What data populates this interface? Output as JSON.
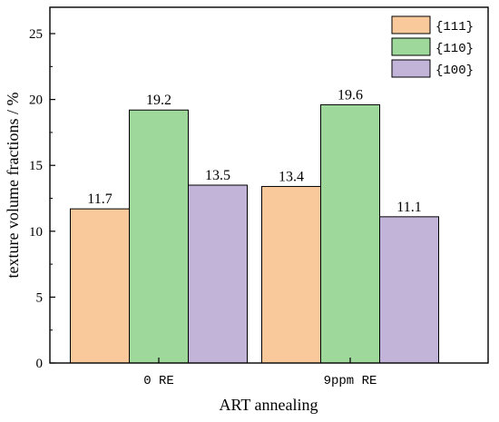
{
  "chart_data": {
    "type": "bar",
    "categories": [
      "0 RE",
      "9ppm RE"
    ],
    "series": [
      {
        "name": "{111}",
        "values": [
          11.7,
          13.4
        ],
        "color": "#f9c89b"
      },
      {
        "name": "{110}",
        "values": [
          19.2,
          19.6
        ],
        "color": "#9ed89b"
      },
      {
        "name": "{100}",
        "values": [
          13.5,
          11.1
        ],
        "color": "#c2b3d9"
      }
    ],
    "data_labels": [
      [
        "11.7",
        "13.4"
      ],
      [
        "19.2",
        "19.6"
      ],
      [
        "13.5",
        "11.1"
      ]
    ],
    "xlabel": "ART annealing",
    "ylabel": "texture volume fractions / %",
    "ylim": [
      0,
      27
    ],
    "yticks": [
      0,
      5,
      10,
      15,
      20,
      25
    ],
    "grid": false,
    "legend_position": "top-right"
  }
}
